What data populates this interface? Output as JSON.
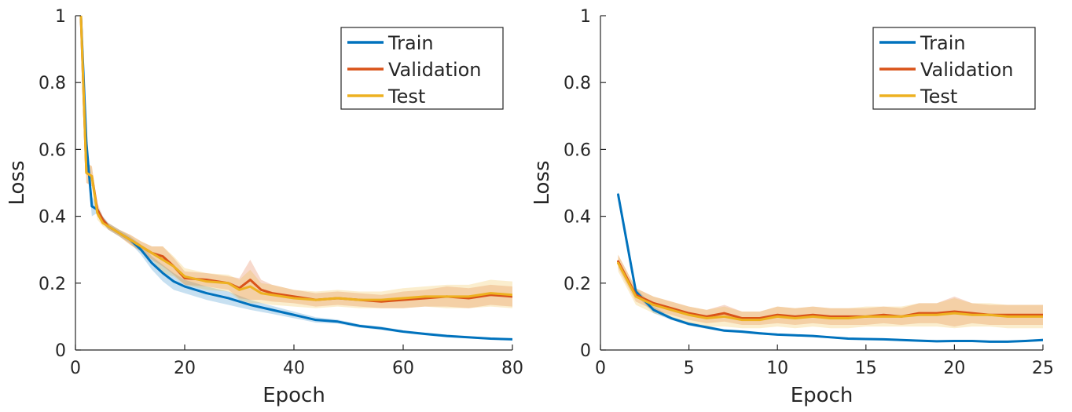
{
  "chart_data": [
    {
      "type": "line",
      "xlabel": "Epoch",
      "ylabel": "Loss",
      "xlim": [
        0,
        80
      ],
      "ylim": [
        0,
        1
      ],
      "xticks": [
        0,
        20,
        40,
        60,
        80
      ],
      "yticks": [
        0,
        0.2,
        0.4,
        0.6,
        0.8,
        1
      ],
      "ytick_labels": [
        "0",
        "0.2",
        "0.4",
        "0.6",
        "0.8",
        "1"
      ],
      "grid": false,
      "legend_position": "top-right",
      "series": [
        {
          "name": "Train",
          "color": "#0072BD",
          "x": [
            1,
            2,
            3,
            4,
            5,
            6,
            8,
            10,
            12,
            14,
            16,
            18,
            20,
            24,
            28,
            32,
            36,
            40,
            44,
            48,
            52,
            56,
            60,
            64,
            68,
            72,
            76,
            80
          ],
          "y": [
            1.0,
            0.62,
            0.43,
            0.42,
            0.39,
            0.37,
            0.35,
            0.33,
            0.3,
            0.26,
            0.23,
            0.205,
            0.19,
            0.17,
            0.155,
            0.135,
            0.12,
            0.105,
            0.09,
            0.085,
            0.072,
            0.065,
            0.055,
            0.048,
            0.042,
            0.038,
            0.034,
            0.032
          ],
          "band": [
            0.02,
            0.03,
            0.03,
            0.01,
            0.01,
            0.01,
            0.01,
            0.01,
            0.015,
            0.02,
            0.025,
            0.025,
            0.02,
            0.02,
            0.02,
            0.015,
            0.012,
            0.01,
            0.008,
            0.006,
            0.005,
            0.005,
            0.004,
            0.004,
            0.004,
            0.004,
            0.003,
            0.003
          ]
        },
        {
          "name": "Validation",
          "color": "#D95319",
          "x": [
            1,
            2,
            3,
            4,
            5,
            6,
            8,
            10,
            12,
            14,
            16,
            18,
            20,
            24,
            28,
            30,
            32,
            34,
            36,
            40,
            44,
            48,
            52,
            56,
            60,
            64,
            68,
            72,
            76,
            80
          ],
          "y": [
            1.0,
            0.53,
            0.52,
            0.42,
            0.39,
            0.37,
            0.35,
            0.33,
            0.31,
            0.29,
            0.28,
            0.25,
            0.215,
            0.21,
            0.2,
            0.185,
            0.21,
            0.18,
            0.17,
            0.16,
            0.15,
            0.155,
            0.15,
            0.145,
            0.15,
            0.155,
            0.16,
            0.155,
            0.165,
            0.16
          ],
          "band": [
            0.02,
            0.03,
            0.03,
            0.02,
            0.01,
            0.01,
            0.01,
            0.015,
            0.015,
            0.02,
            0.03,
            0.025,
            0.02,
            0.02,
            0.02,
            0.03,
            0.06,
            0.03,
            0.025,
            0.02,
            0.02,
            0.02,
            0.02,
            0.02,
            0.025,
            0.025,
            0.03,
            0.03,
            0.03,
            0.03
          ]
        },
        {
          "name": "Test",
          "color": "#EDB120",
          "x": [
            1,
            2,
            3,
            4,
            5,
            6,
            8,
            10,
            12,
            14,
            16,
            18,
            20,
            24,
            28,
            30,
            32,
            34,
            36,
            40,
            44,
            48,
            52,
            56,
            60,
            64,
            68,
            72,
            76,
            80
          ],
          "y": [
            1.0,
            0.53,
            0.52,
            0.41,
            0.38,
            0.37,
            0.35,
            0.33,
            0.31,
            0.29,
            0.27,
            0.25,
            0.22,
            0.205,
            0.2,
            0.18,
            0.19,
            0.17,
            0.165,
            0.155,
            0.15,
            0.155,
            0.15,
            0.15,
            0.155,
            0.16,
            0.16,
            0.16,
            0.17,
            0.165
          ],
          "band": [
            0.02,
            0.03,
            0.03,
            0.02,
            0.01,
            0.01,
            0.01,
            0.015,
            0.015,
            0.02,
            0.04,
            0.03,
            0.025,
            0.025,
            0.025,
            0.03,
            0.05,
            0.03,
            0.03,
            0.025,
            0.025,
            0.025,
            0.025,
            0.025,
            0.03,
            0.03,
            0.035,
            0.035,
            0.04,
            0.04
          ]
        }
      ]
    },
    {
      "type": "line",
      "xlabel": "Epoch",
      "ylabel": "Loss",
      "xlim": [
        0,
        25
      ],
      "ylim": [
        0,
        1
      ],
      "xticks": [
        0,
        5,
        10,
        15,
        20,
        25
      ],
      "yticks": [
        0,
        0.2,
        0.4,
        0.6,
        0.8,
        1
      ],
      "ytick_labels": [
        "0",
        "0.2",
        "0.4",
        "0.6",
        "0.8",
        "1"
      ],
      "grid": false,
      "legend_position": "top-right",
      "series": [
        {
          "name": "Train",
          "color": "#0072BD",
          "x": [
            1,
            2,
            3,
            4,
            5,
            6,
            7,
            8,
            9,
            10,
            11,
            12,
            13,
            14,
            15,
            16,
            17,
            18,
            19,
            20,
            21,
            22,
            23,
            24,
            25
          ],
          "y": [
            0.465,
            0.175,
            0.12,
            0.095,
            0.078,
            0.068,
            0.058,
            0.055,
            0.05,
            0.046,
            0.044,
            0.042,
            0.038,
            0.034,
            0.033,
            0.032,
            0.03,
            0.028,
            0.026,
            0.027,
            0.027,
            0.025,
            0.025,
            0.027,
            0.03
          ],
          "band": [
            0.01,
            0.01,
            0.01,
            0.005,
            0.005,
            0.005,
            0.004,
            0.004,
            0.004,
            0.003,
            0.003,
            0.003,
            0.003,
            0.003,
            0.003,
            0.003,
            0.003,
            0.003,
            0.003,
            0.003,
            0.003,
            0.003,
            0.003,
            0.003,
            0.004
          ]
        },
        {
          "name": "Validation",
          "color": "#D95319",
          "x": [
            1,
            2,
            3,
            4,
            5,
            6,
            7,
            8,
            9,
            10,
            11,
            12,
            13,
            14,
            15,
            16,
            17,
            18,
            19,
            20,
            21,
            22,
            23,
            24,
            25
          ],
          "y": [
            0.265,
            0.165,
            0.14,
            0.125,
            0.11,
            0.1,
            0.11,
            0.095,
            0.095,
            0.105,
            0.1,
            0.105,
            0.1,
            0.1,
            0.1,
            0.105,
            0.1,
            0.11,
            0.11,
            0.115,
            0.11,
            0.105,
            0.105,
            0.105,
            0.105
          ],
          "band": [
            0.02,
            0.02,
            0.02,
            0.02,
            0.02,
            0.02,
            0.025,
            0.02,
            0.02,
            0.025,
            0.025,
            0.025,
            0.025,
            0.025,
            0.025,
            0.025,
            0.025,
            0.03,
            0.03,
            0.045,
            0.03,
            0.03,
            0.03,
            0.03,
            0.03
          ]
        },
        {
          "name": "Test",
          "color": "#EDB120",
          "x": [
            1,
            2,
            3,
            4,
            5,
            6,
            7,
            8,
            9,
            10,
            11,
            12,
            13,
            14,
            15,
            16,
            17,
            18,
            19,
            20,
            21,
            22,
            23,
            24,
            25
          ],
          "y": [
            0.26,
            0.16,
            0.135,
            0.12,
            0.105,
            0.095,
            0.1,
            0.09,
            0.09,
            0.1,
            0.095,
            0.1,
            0.095,
            0.095,
            0.1,
            0.1,
            0.1,
            0.105,
            0.105,
            0.11,
            0.105,
            0.105,
            0.1,
            0.1,
            0.1
          ],
          "band": [
            0.025,
            0.025,
            0.025,
            0.025,
            0.025,
            0.025,
            0.03,
            0.025,
            0.025,
            0.03,
            0.03,
            0.03,
            0.03,
            0.03,
            0.03,
            0.03,
            0.03,
            0.035,
            0.035,
            0.045,
            0.035,
            0.035,
            0.035,
            0.035,
            0.035
          ]
        }
      ]
    }
  ]
}
